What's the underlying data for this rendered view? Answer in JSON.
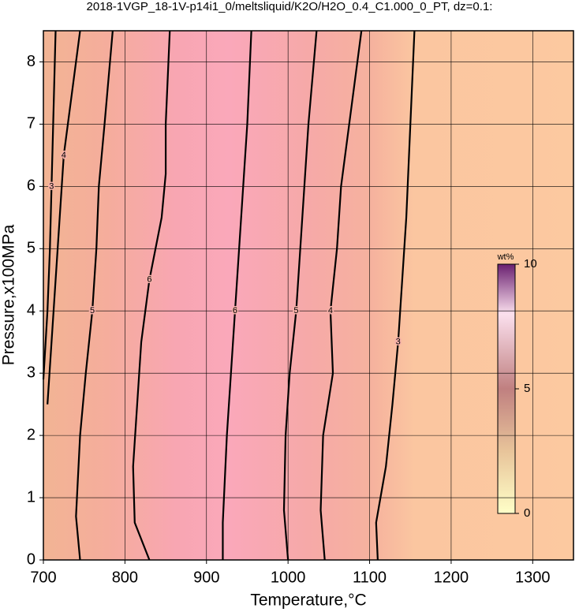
{
  "chart_data": {
    "type": "contour",
    "title": "2018-1VGP_18-1V-p14i1_0/meltsliquid/K2O/H2O_0.4_C1.000_0_PT, dz=0.1:",
    "x_label": "Temperature,°C",
    "y_label": "Pressure,x100MPa",
    "xlim": [
      700,
      1350
    ],
    "ylim": [
      0,
      8.5
    ],
    "xticks": [
      700,
      800,
      900,
      1000,
      1100,
      1200,
      1300
    ],
    "yticks": [
      0,
      1,
      2,
      3,
      4,
      5,
      6,
      7,
      8
    ],
    "grid": true,
    "contours": [
      {
        "level": 3,
        "x": [
          700,
          705,
          708,
          710,
          712,
          715
        ],
        "y": [
          2.9,
          4,
          5,
          6,
          7,
          8.5
        ]
      },
      {
        "level": 4,
        "x": [
          705,
          715,
          720,
          725,
          735,
          745
        ],
        "y": [
          2.5,
          4.5,
          5.5,
          6.5,
          7.5,
          8.5
        ]
      },
      {
        "level": 5,
        "x": [
          745,
          740,
          745,
          752,
          760,
          765,
          768,
          775,
          785
        ],
        "y": [
          0,
          0.7,
          2,
          3,
          4,
          5,
          6,
          7,
          8.5
        ]
      },
      {
        "level": 6,
        "x": [
          830,
          812,
          810,
          815,
          820,
          830,
          845,
          850,
          850,
          855
        ],
        "y": [
          0,
          0.6,
          1.5,
          2.5,
          3.5,
          4.5,
          5.5,
          6.2,
          7,
          8.5
        ]
      },
      {
        "level": 6,
        "x": [
          920,
          920,
          925,
          930,
          935,
          940,
          945,
          950,
          955
        ],
        "y": [
          0,
          0.6,
          2,
          3,
          4,
          5,
          6,
          7,
          8.5
        ]
      },
      {
        "level": 5,
        "x": [
          1000,
          995,
          997,
          1002,
          1010,
          1015,
          1020,
          1025,
          1035
        ],
        "y": [
          0,
          0.8,
          2,
          3,
          4,
          5,
          6,
          7,
          8.5
        ]
      },
      {
        "level": 4,
        "x": [
          1045,
          1040,
          1043,
          1055,
          1052,
          1060,
          1065,
          1075,
          1090
        ],
        "y": [
          0,
          0.8,
          2,
          3,
          4,
          5,
          6,
          7,
          8.5
        ]
      },
      {
        "level": 3,
        "x": [
          1110,
          1108,
          1120,
          1128,
          1135,
          1140,
          1145,
          1150,
          1155
        ],
        "y": [
          0,
          0.6,
          1.5,
          2.5,
          3.5,
          4.5,
          5.5,
          7,
          8.5
        ]
      }
    ],
    "colorbar": {
      "label": "wt%",
      "lim": [
        0,
        10
      ],
      "ticks": [
        0,
        5,
        10
      ]
    }
  }
}
